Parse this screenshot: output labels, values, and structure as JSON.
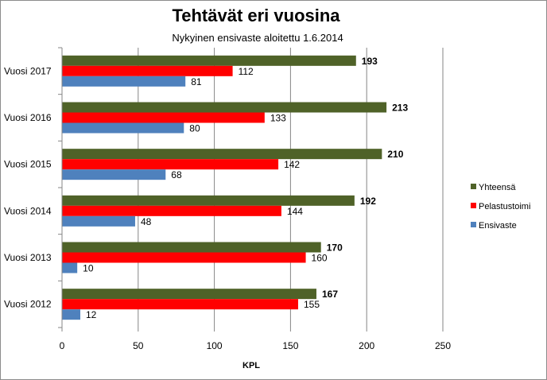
{
  "chart_data": {
    "type": "bar",
    "orientation": "horizontal",
    "title": "Tehtävät eri vuosina",
    "subtitle": "Nykyinen ensivaste aloitettu 1.6.2014",
    "xlabel": "KPL",
    "ylabel": "",
    "xlim": [
      0,
      250
    ],
    "xticks": [
      0,
      50,
      100,
      150,
      200,
      250
    ],
    "grid": "vertical",
    "legend_position": "right",
    "categories": [
      "Vuosi 2017",
      "Vuosi 2016",
      "Vuosi 2015",
      "Vuosi 2014",
      "Vuosi 2013",
      "Vuosi 2012"
    ],
    "series": [
      {
        "name": "Yhteensä",
        "color": "#4f6228",
        "values": [
          193,
          213,
          210,
          192,
          170,
          167
        ]
      },
      {
        "name": "Pelastustoimi",
        "color": "#ff0000",
        "values": [
          112,
          133,
          142,
          144,
          160,
          155
        ]
      },
      {
        "name": "Ensivaste",
        "color": "#4f81bd",
        "values": [
          81,
          80,
          68,
          48,
          10,
          12
        ]
      }
    ]
  }
}
